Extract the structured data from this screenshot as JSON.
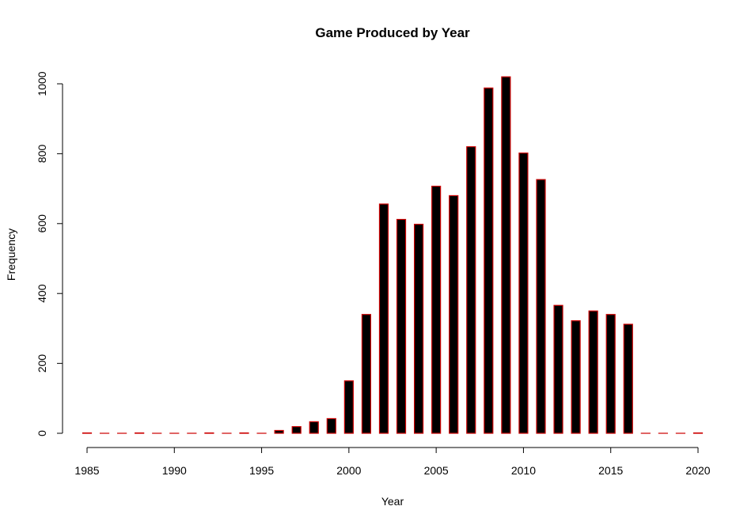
{
  "chart_data": {
    "type": "bar",
    "title": "Game Produced by Year",
    "xlabel": "Year",
    "ylabel": "Frequency",
    "xlim": [
      1985,
      2020
    ],
    "ylim": [
      0,
      1000
    ],
    "x_ticks": [
      "1985",
      "1990",
      "1995",
      "2000",
      "2005",
      "2010",
      "2015",
      "2020"
    ],
    "y_ticks": [
      "0",
      "200",
      "400",
      "600",
      "800",
      "1000"
    ],
    "bar_fill": "#000000",
    "bar_border": "#cc0000",
    "grid": false,
    "legend": "none",
    "categories": [
      1985,
      1986,
      1987,
      1988,
      1989,
      1990,
      1991,
      1992,
      1993,
      1994,
      1995,
      1996,
      1997,
      1998,
      1999,
      2000,
      2001,
      2002,
      2003,
      2004,
      2005,
      2006,
      2007,
      2008,
      2009,
      2010,
      2011,
      2012,
      2013,
      2014,
      2015,
      2016,
      2017,
      2018,
      2019,
      2020
    ],
    "values": [
      1,
      0,
      0,
      1,
      0,
      0,
      0,
      1,
      0,
      1,
      0,
      8,
      19,
      33,
      42,
      150,
      340,
      656,
      612,
      598,
      707,
      680,
      820,
      988,
      1020,
      802,
      726,
      366,
      322,
      350,
      340,
      312,
      0,
      0,
      0,
      1
    ]
  }
}
